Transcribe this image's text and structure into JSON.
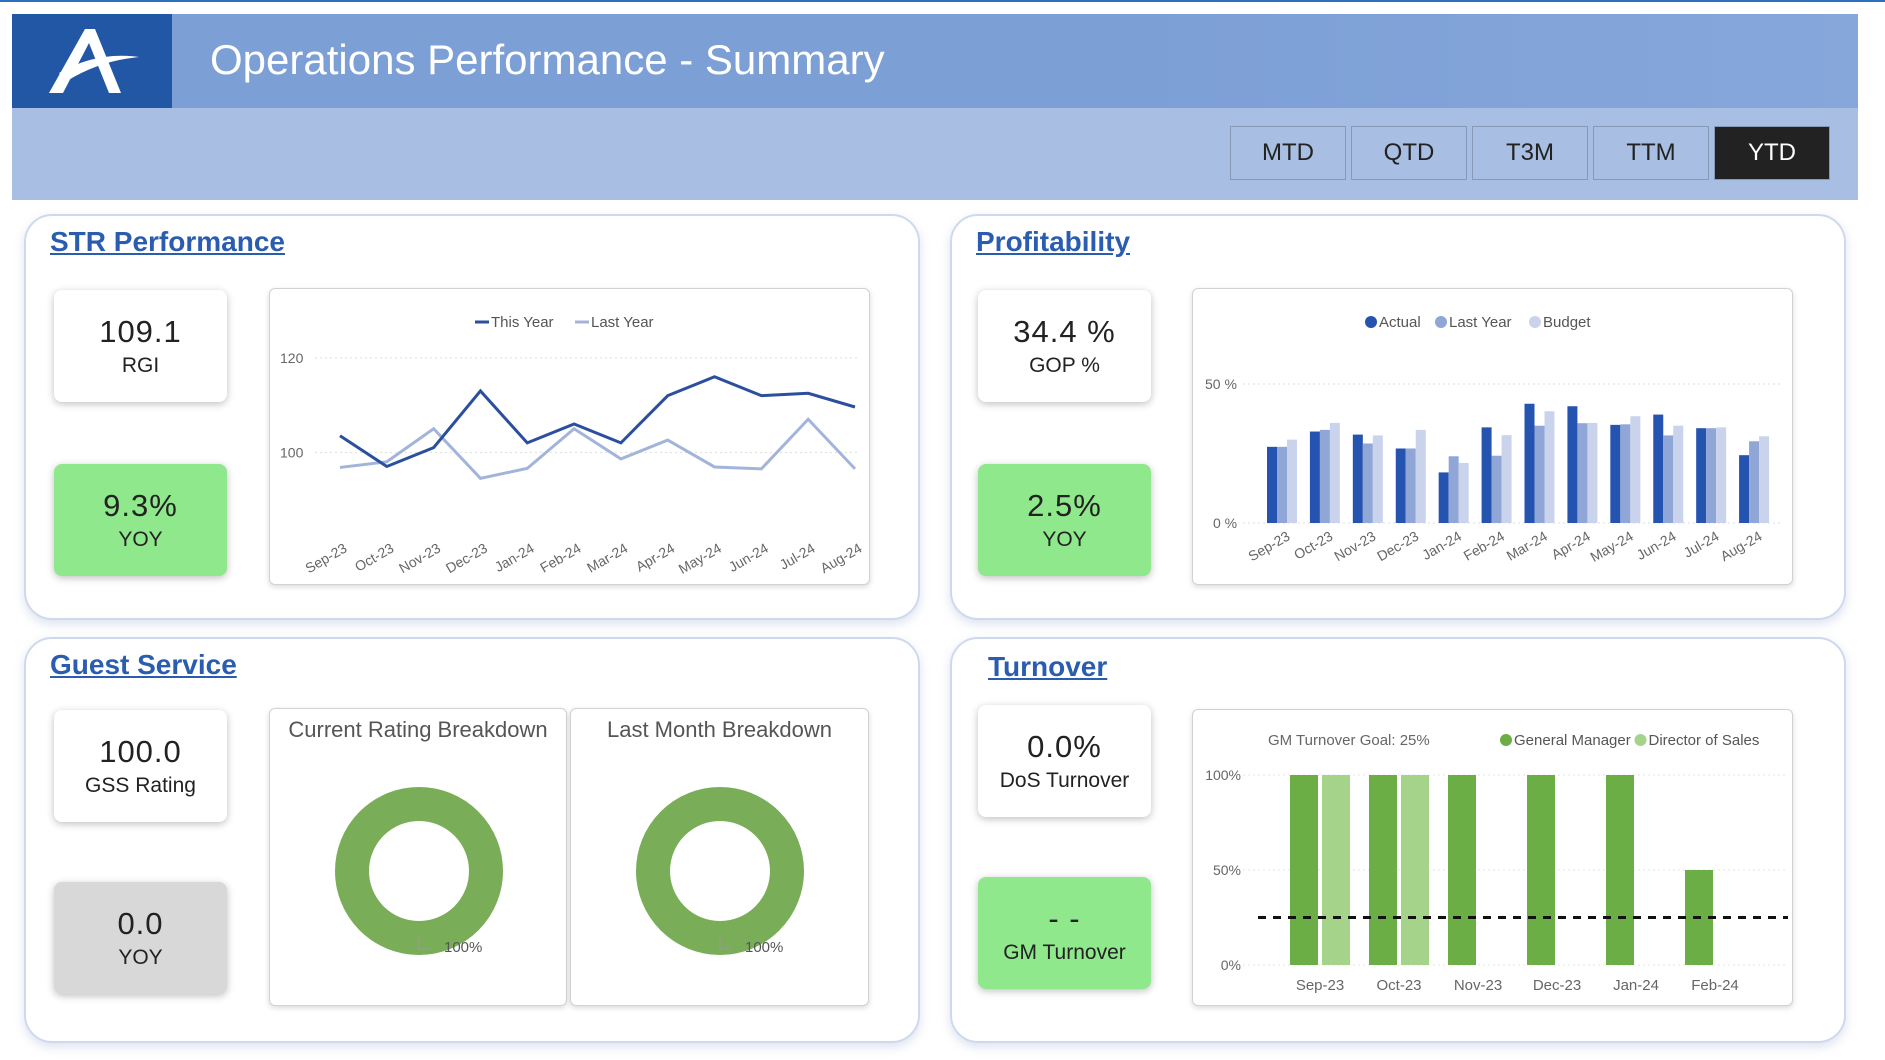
{
  "header": {
    "title": "Operations Performance - Summary",
    "logo_text": "A"
  },
  "filters": [
    {
      "label": "MTD",
      "active": false
    },
    {
      "label": "QTD",
      "active": false
    },
    {
      "label": "T3M",
      "active": false
    },
    {
      "label": "TTM",
      "active": false
    },
    {
      "label": "YTD",
      "active": true
    }
  ],
  "str": {
    "title": "STR Performance",
    "rgi_value": "109.1",
    "rgi_label": "RGI",
    "yoy_value": "9.3%",
    "yoy_label": "YOY"
  },
  "profit": {
    "title": "Profitability",
    "gop_value": "34.4 %",
    "gop_label": "GOP %",
    "yoy_value": "2.5%",
    "yoy_label": "YOY"
  },
  "guest": {
    "title": "Guest Service",
    "gss_value": "100.0",
    "gss_label": "GSS Rating",
    "yoy_value": "0.0",
    "yoy_label": "YOY",
    "donuts": [
      {
        "title": "Current Rating Breakdown",
        "label": "100%",
        "value": 100
      },
      {
        "title": "Last Month Breakdown",
        "label": "100%",
        "value": 100
      }
    ]
  },
  "turnover": {
    "title": "Turnover",
    "dos_value": "0.0%",
    "dos_label": "DoS Turnover",
    "gm_value": "- -",
    "gm_label": "GM Turnover"
  },
  "chart_data": [
    {
      "type": "line",
      "title": "",
      "categories": [
        "Sep-23",
        "Oct-23",
        "Nov-23",
        "Dec-23",
        "Jan-24",
        "Feb-24",
        "Mar-24",
        "Apr-24",
        "May-24",
        "Jun-24",
        "Jul-24",
        "Aug-24"
      ],
      "series": [
        {
          "name": "This Year",
          "color": "#2b4f9e",
          "values": [
            103.5,
            97,
            101,
            113,
            102,
            106,
            102,
            112,
            116,
            112,
            112.5,
            109.6
          ]
        },
        {
          "name": "Last Year",
          "color": "#a3b4db",
          "values": [
            96.8,
            98,
            105,
            94.5,
            96.6,
            105,
            98.6,
            102.6,
            96.9,
            96.5,
            107,
            96.5
          ]
        }
      ],
      "yticks": [
        100,
        120
      ],
      "ylim": [
        88,
        124
      ],
      "legend": "top-center",
      "grid": true
    },
    {
      "type": "bar",
      "title": "",
      "categories": [
        "Sep-23",
        "Oct-23",
        "Nov-23",
        "Dec-23",
        "Jan-24",
        "Feb-24",
        "Mar-24",
        "Apr-24",
        "May-24",
        "Jun-24",
        "Jul-24",
        "Aug-24"
      ],
      "series": [
        {
          "name": "Actual",
          "color": "#2554b0",
          "values": [
            27.4,
            32.9,
            31.8,
            26.8,
            18.2,
            34.4,
            42.9,
            42,
            35.3,
            39,
            34.1,
            24.4
          ]
        },
        {
          "name": "Last Year",
          "color": "#8fa6d6",
          "values": [
            27.4,
            33.5,
            28.6,
            26.8,
            24,
            24.2,
            35,
            35.9,
            35.5,
            31.5,
            34.1,
            29.4
          ]
        },
        {
          "name": "Budget",
          "color": "#c9d4ec",
          "values": [
            30,
            36,
            31.5,
            33.5,
            21.6,
            31.6,
            40.2,
            36,
            38.4,
            35,
            34.4,
            31.2
          ]
        }
      ],
      "yticks": [
        "0 %",
        "50 %"
      ],
      "ylim": [
        0,
        55
      ],
      "legend": "top-center",
      "grid": true
    },
    {
      "type": "bar",
      "title": "GM Turnover Goal: 25%",
      "categories": [
        "Sep-23",
        "Oct-23",
        "Nov-23",
        "Dec-23",
        "Jan-24",
        "Feb-24"
      ],
      "series": [
        {
          "name": "General Manager",
          "color": "#6aae45",
          "values": [
            100,
            100,
            100,
            100,
            100,
            50
          ]
        },
        {
          "name": "Director of Sales",
          "color": "#a6d38a",
          "values": [
            100,
            100,
            0,
            0,
            0,
            0
          ]
        }
      ],
      "goal": 25,
      "yticks": [
        "0%",
        "50%",
        "100%"
      ],
      "ylim": [
        0,
        100
      ],
      "legend": "top-right",
      "grid": true
    }
  ]
}
